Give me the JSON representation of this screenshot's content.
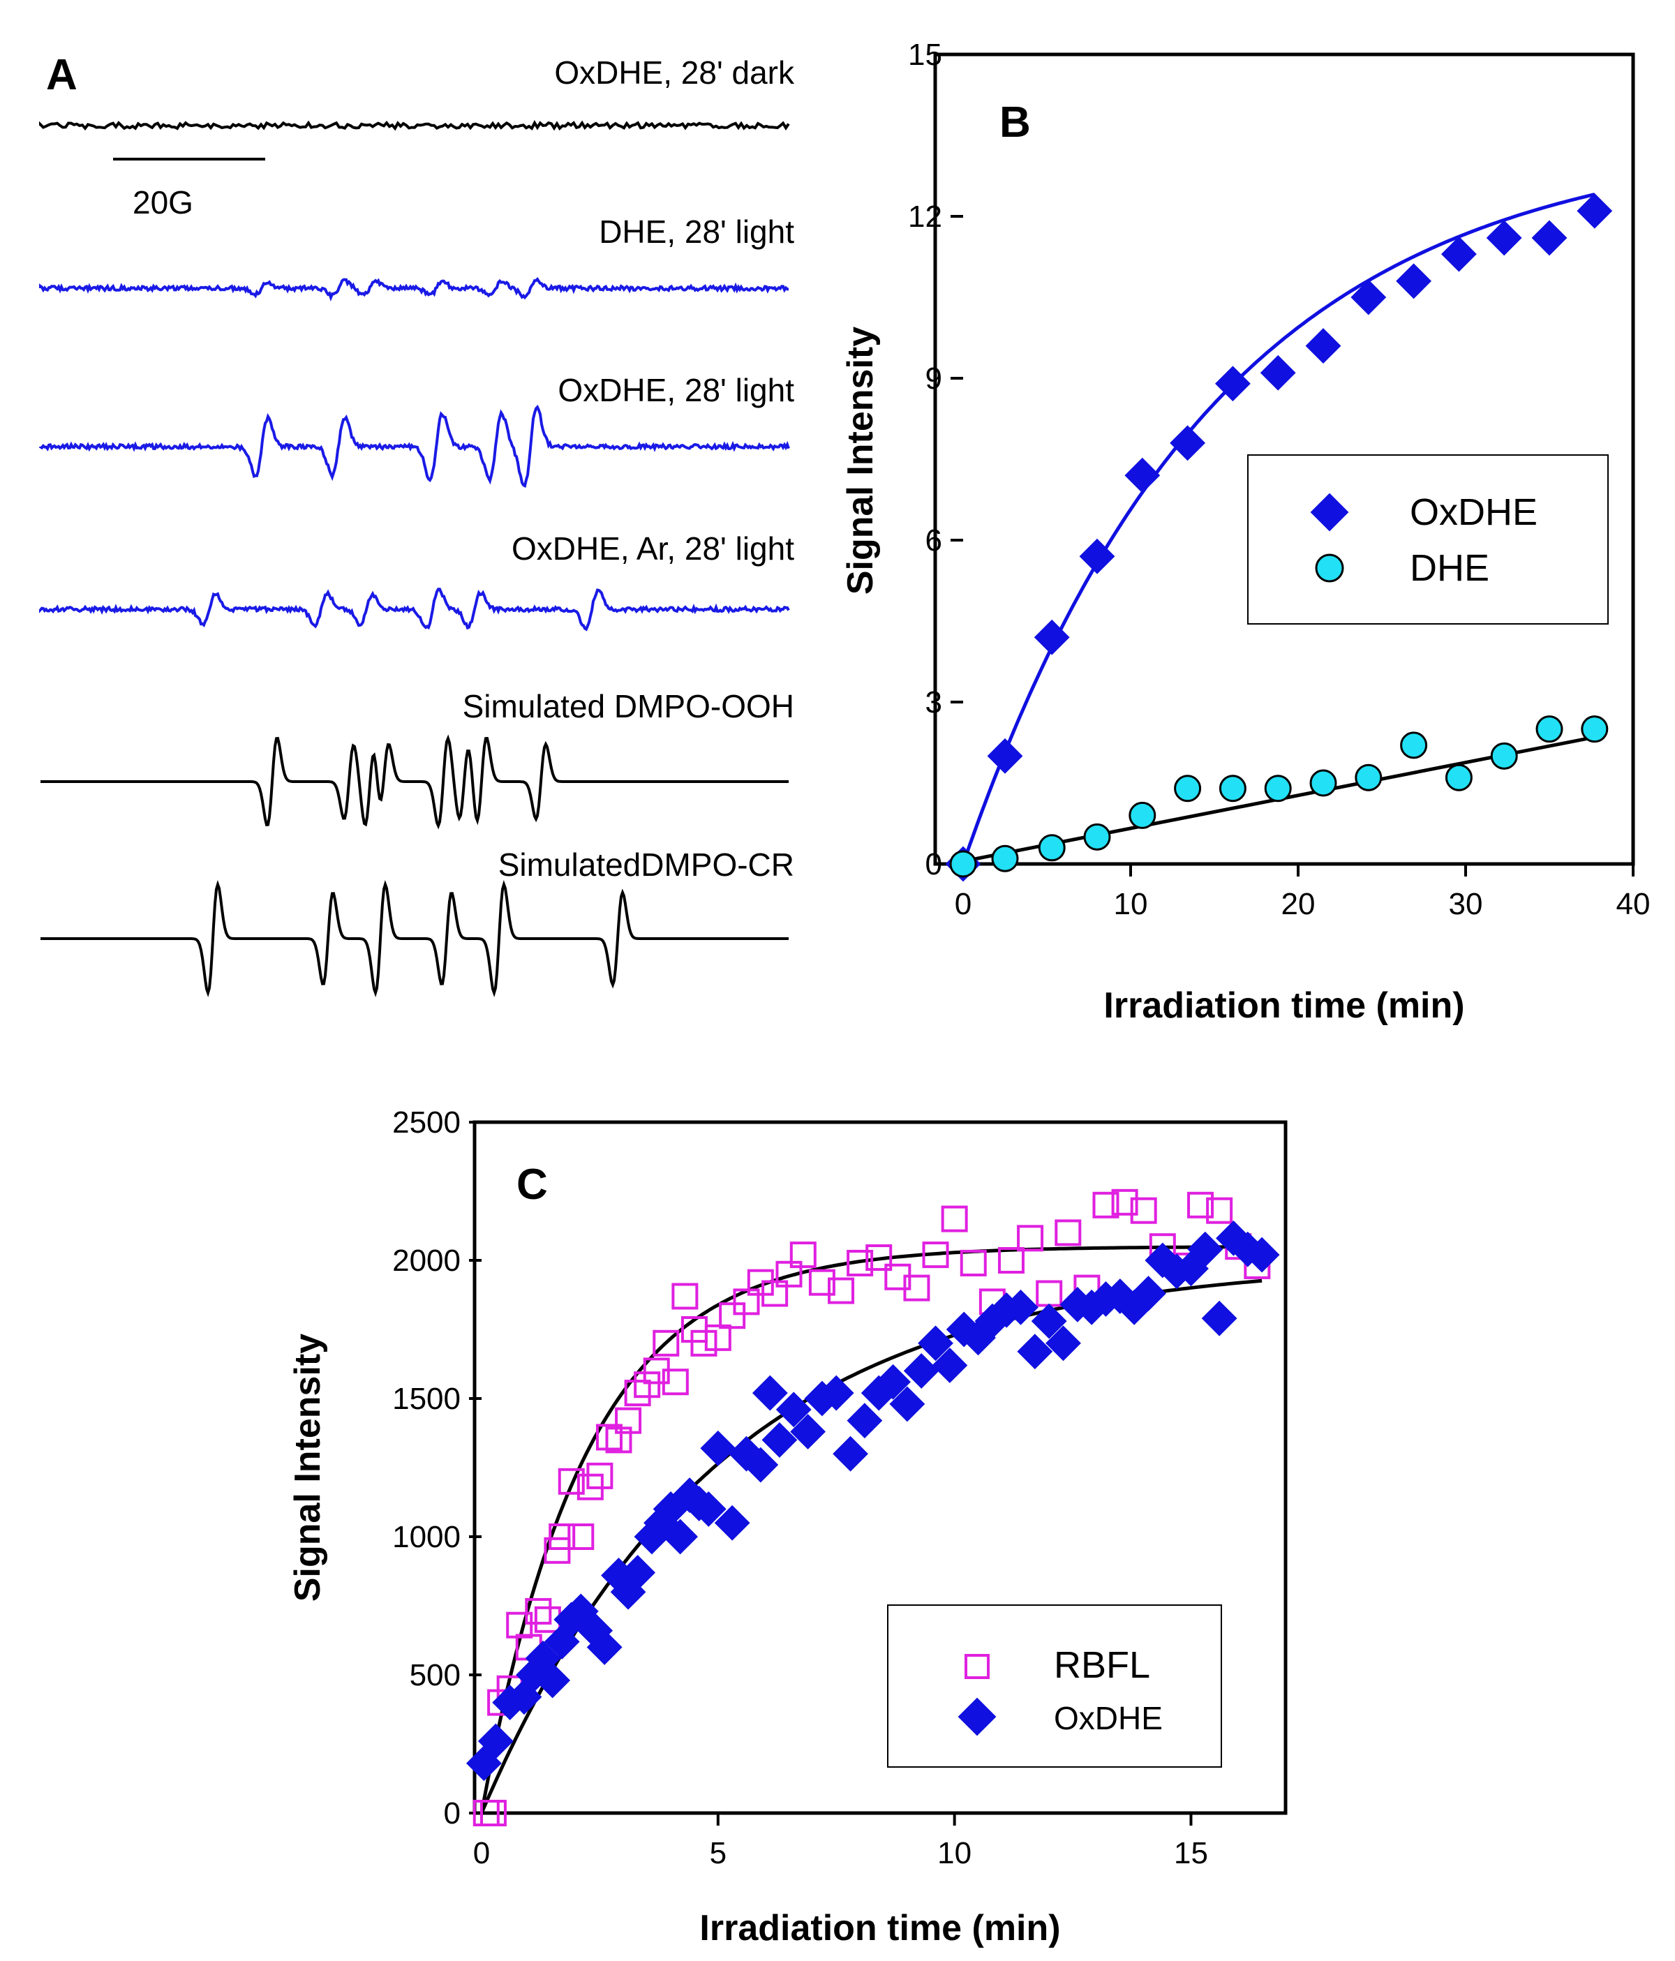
{
  "panel_a": {
    "letter": "A",
    "scale_bar_label": "20G",
    "traces": [
      {
        "label": "OxDHE, 28' dark",
        "color": "#000000",
        "kind": "noise",
        "amp": 4
      },
      {
        "label": "DHE, 28' light",
        "color": "#1a1ae6",
        "kind": "dmpo-ooh-weak",
        "amp": 12
      },
      {
        "label": "OxDHE, 28' light",
        "color": "#1a1ae6",
        "kind": "dmpo-ooh",
        "amp": 60
      },
      {
        "label": "OxDHE, Ar, 28' light",
        "color": "#1a1ae6",
        "kind": "dmpo-cr",
        "amp": 28
      },
      {
        "label": "Simulated DMPO-OOH",
        "color": "#000000",
        "kind": "sim-ooh",
        "amp": 65
      },
      {
        "label": "SimulatedDMPO-CR",
        "color": "#000000",
        "kind": "sim-cr",
        "amp": 80
      }
    ]
  },
  "chart_data": [
    {
      "panel": "B",
      "type": "scatter",
      "xlabel": "Irradiation time (min)",
      "ylabel": "Signal Intensity",
      "xlim": [
        0,
        40
      ],
      "ylim": [
        0,
        15
      ],
      "xticks": [
        0,
        10,
        20,
        30,
        40
      ],
      "yticks": [
        0,
        3,
        6,
        9,
        12,
        15
      ],
      "legend_position": "center-right",
      "series": [
        {
          "name": "OxDHE",
          "marker": "diamond",
          "color": "#1010e0",
          "x": [
            0,
            2.5,
            5.3,
            8,
            10.7,
            13.4,
            16.1,
            18.8,
            21.5,
            24.2,
            26.9,
            29.6,
            32.3,
            35,
            37.7
          ],
          "y": [
            0,
            2.0,
            4.2,
            5.7,
            7.2,
            7.8,
            8.9,
            9.1,
            9.6,
            10.5,
            10.8,
            11.3,
            11.6,
            11.6,
            12.1
          ],
          "fit": {
            "model": "exp-rise",
            "a": 13.5,
            "tau": 15
          }
        },
        {
          "name": "DHE",
          "marker": "circle",
          "color": "#22e0f5",
          "x": [
            0,
            2.5,
            5.3,
            8,
            10.7,
            13.4,
            16.1,
            18.8,
            21.5,
            24.2,
            26.9,
            29.6,
            32.3,
            35,
            37.7
          ],
          "y": [
            0,
            0.1,
            0.3,
            0.5,
            0.9,
            1.4,
            1.4,
            1.4,
            1.5,
            1.6,
            2.2,
            1.6,
            2.0,
            2.5,
            2.5
          ],
          "fit": {
            "model": "linear",
            "points": [
              [
                0,
                0.05
              ],
              [
                37.7,
                2.35
              ]
            ]
          }
        }
      ]
    },
    {
      "panel": "C",
      "type": "scatter",
      "xlabel": "Irradiation time (min)",
      "ylabel": "Signal Intensity",
      "xlim": [
        0,
        17
      ],
      "ylim": [
        0,
        2500
      ],
      "xticks": [
        0,
        5,
        10,
        15
      ],
      "yticks": [
        0,
        500,
        1000,
        1500,
        2000,
        2500
      ],
      "legend_position": "bottom-right",
      "series": [
        {
          "name": "RBFL",
          "marker": "open-square",
          "color": "#e020e0",
          "x": [
            0.1,
            0.25,
            0.4,
            0.6,
            0.8,
            1.0,
            1.2,
            1.4,
            1.6,
            1.7,
            1.9,
            2.1,
            2.3,
            2.5,
            2.7,
            2.9,
            3.1,
            3.3,
            3.5,
            3.7,
            3.9,
            4.1,
            4.3,
            4.5,
            4.7,
            5.0,
            5.3,
            5.6,
            5.9,
            6.2,
            6.5,
            6.8,
            7.2,
            7.6,
            8.0,
            8.4,
            8.8,
            9.2,
            9.6,
            10.0,
            10.4,
            10.8,
            11.2,
            11.6,
            12.0,
            12.4,
            12.8,
            13.2,
            13.6,
            14.0,
            14.4,
            14.8,
            15.2,
            15.6,
            16.0,
            16.4
          ],
          "y": [
            0,
            0,
            400,
            450,
            680,
            600,
            730,
            700,
            950,
            1000,
            1200,
            1000,
            1180,
            1220,
            1360,
            1350,
            1420,
            1520,
            1550,
            1600,
            1700,
            1560,
            1870,
            1750,
            1700,
            1720,
            1800,
            1850,
            1920,
            1880,
            1950,
            2020,
            1920,
            1890,
            1990,
            2010,
            1940,
            1900,
            2020,
            2150,
            1990,
            1850,
            2000,
            2080,
            1880,
            2100,
            1900,
            2200,
            2210,
            2180,
            2050,
            1980,
            2200,
            2180,
            2050,
            1980
          ],
          "fit": {
            "model": "exp-rise",
            "a": 2050,
            "tau": 2.2
          }
        },
        {
          "name": "OxDHE",
          "marker": "diamond",
          "color": "#1010e0",
          "x": [
            0.05,
            0.3,
            0.6,
            0.9,
            1.1,
            1.3,
            1.5,
            1.7,
            1.9,
            2.1,
            2.4,
            2.6,
            2.9,
            3.1,
            3.3,
            3.6,
            3.8,
            4.0,
            4.2,
            4.4,
            4.6,
            4.8,
            5.0,
            5.3,
            5.6,
            5.9,
            6.1,
            6.3,
            6.6,
            6.9,
            7.2,
            7.5,
            7.8,
            8.1,
            8.4,
            8.7,
            9.0,
            9.3,
            9.6,
            9.9,
            10.2,
            10.5,
            10.8,
            11.1,
            11.4,
            11.7,
            12.0,
            12.3,
            12.6,
            12.9,
            13.2,
            13.5,
            13.8,
            14.1,
            14.4,
            14.7,
            15.0,
            15.3,
            15.6,
            15.9,
            16.2,
            16.5
          ],
          "y": [
            180,
            260,
            400,
            420,
            500,
            560,
            480,
            620,
            700,
            730,
            660,
            600,
            860,
            800,
            870,
            1000,
            1050,
            1100,
            1000,
            1150,
            1120,
            1100,
            1320,
            1050,
            1300,
            1260,
            1520,
            1350,
            1460,
            1380,
            1500,
            1520,
            1300,
            1420,
            1520,
            1560,
            1480,
            1600,
            1700,
            1620,
            1750,
            1720,
            1780,
            1820,
            1830,
            1670,
            1780,
            1700,
            1840,
            1830,
            1860,
            1870,
            1830,
            1880,
            2000,
            1960,
            1970,
            2040,
            1790,
            2080,
            2040,
            2020
          ],
          "fit": {
            "model": "exp-rise",
            "a": 2000,
            "tau": 5.0
          }
        }
      ]
    }
  ]
}
